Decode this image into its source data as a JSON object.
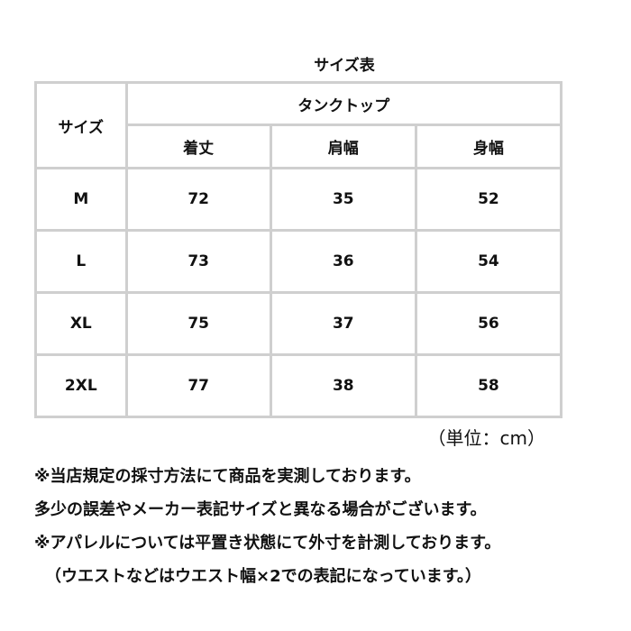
{
  "title": "サイズ表",
  "table": {
    "size_header": "サイズ",
    "group_header": "タンクトップ",
    "columns": [
      "着丈",
      "肩幅",
      "身幅"
    ],
    "rows": [
      {
        "size": "M",
        "values": [
          "72",
          "35",
          "52"
        ]
      },
      {
        "size": "L",
        "values": [
          "73",
          "36",
          "54"
        ]
      },
      {
        "size": "XL",
        "values": [
          "75",
          "37",
          "56"
        ]
      },
      {
        "size": "2XL",
        "values": [
          "77",
          "38",
          "58"
        ]
      }
    ]
  },
  "unit": "（単位：cm）",
  "notes": [
    "※当店規定の採寸方法にて商品を実測しております。",
    "多少の誤差やメーカー表記サイズと異なる場合がございます。",
    "※アパレルについては平置き状態にて外寸を計測しております。",
    "（ウエストなどはウエスト幅×2での表記になっています。）"
  ]
}
